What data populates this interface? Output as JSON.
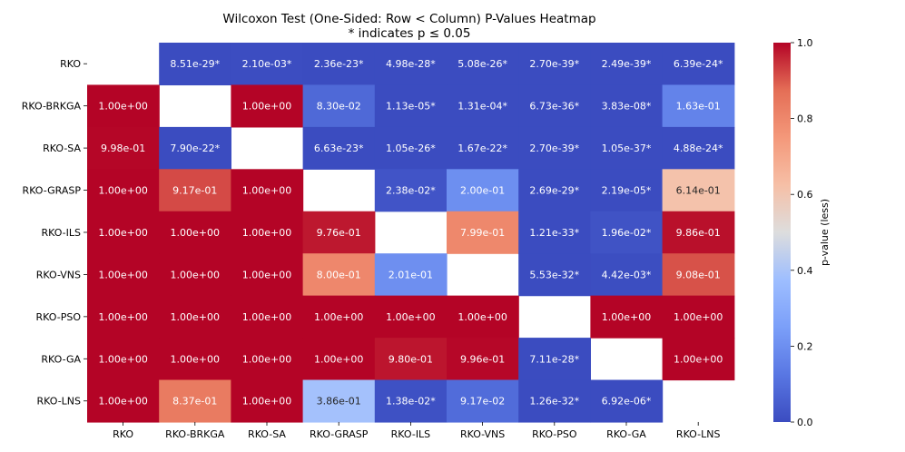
{
  "chart_data": {
    "type": "heatmap",
    "title": "Wilcoxon Test (One-Sided: Row < Column) P-Values Heatmap",
    "subtitle": "* indicates p ≤ 0.05",
    "rows": [
      "RKO",
      "RKO-BRKGA",
      "RKO-SA",
      "RKO-GRASP",
      "RKO-ILS",
      "RKO-VNS",
      "RKO-PSO",
      "RKO-GA",
      "RKO-LNS"
    ],
    "columns": [
      "RKO",
      "RKO-BRKGA",
      "RKO-SA",
      "RKO-GRASP",
      "RKO-ILS",
      "RKO-VNS",
      "RKO-PSO",
      "RKO-GA",
      "RKO-LNS"
    ],
    "values": [
      [
        null,
        8.51e-29,
        0.0021,
        2.36e-23,
        4.98e-28,
        5.08e-26,
        2.7e-39,
        2.49e-39,
        6.39e-24
      ],
      [
        1.0,
        null,
        1.0,
        0.083,
        1.13e-05,
        0.000131,
        6.73e-36,
        3.83e-08,
        0.163
      ],
      [
        0.998,
        7.9e-22,
        null,
        6.63e-23,
        1.05e-26,
        1.67e-22,
        2.7e-39,
        1.05e-37,
        4.88e-24
      ],
      [
        1.0,
        0.917,
        1.0,
        null,
        0.0238,
        0.2,
        2.69e-29,
        2.19e-05,
        0.614
      ],
      [
        1.0,
        1.0,
        1.0,
        0.976,
        null,
        0.799,
        1.21e-33,
        0.0196,
        0.986
      ],
      [
        1.0,
        1.0,
        1.0,
        0.8,
        0.201,
        null,
        5.53e-32,
        0.00442,
        0.908
      ],
      [
        1.0,
        1.0,
        1.0,
        1.0,
        1.0,
        1.0,
        null,
        1.0,
        1.0
      ],
      [
        1.0,
        1.0,
        1.0,
        1.0,
        0.98,
        0.996,
        7.11e-28,
        null,
        1.0
      ],
      [
        1.0,
        0.837,
        1.0,
        0.386,
        0.0138,
        0.0917,
        1.26e-32,
        6.92e-06,
        null
      ]
    ],
    "labels": [
      [
        "",
        "8.51e-29*",
        "2.10e-03*",
        "2.36e-23*",
        "4.98e-28*",
        "5.08e-26*",
        "2.70e-39*",
        "2.49e-39*",
        "6.39e-24*"
      ],
      [
        "1.00e+00",
        "",
        "1.00e+00",
        "8.30e-02",
        "1.13e-05*",
        "1.31e-04*",
        "6.73e-36*",
        "3.83e-08*",
        "1.63e-01"
      ],
      [
        "9.98e-01",
        "7.90e-22*",
        "",
        "6.63e-23*",
        "1.05e-26*",
        "1.67e-22*",
        "2.70e-39*",
        "1.05e-37*",
        "4.88e-24*"
      ],
      [
        "1.00e+00",
        "9.17e-01",
        "1.00e+00",
        "",
        "2.38e-02*",
        "2.00e-01",
        "2.69e-29*",
        "2.19e-05*",
        "6.14e-01"
      ],
      [
        "1.00e+00",
        "1.00e+00",
        "1.00e+00",
        "9.76e-01",
        "",
        "7.99e-01",
        "1.21e-33*",
        "1.96e-02*",
        "9.86e-01"
      ],
      [
        "1.00e+00",
        "1.00e+00",
        "1.00e+00",
        "8.00e-01",
        "2.01e-01",
        "",
        "5.53e-32*",
        "4.42e-03*",
        "9.08e-01"
      ],
      [
        "1.00e+00",
        "1.00e+00",
        "1.00e+00",
        "1.00e+00",
        "1.00e+00",
        "1.00e+00",
        "",
        "1.00e+00",
        "1.00e+00"
      ],
      [
        "1.00e+00",
        "1.00e+00",
        "1.00e+00",
        "1.00e+00",
        "9.80e-01",
        "9.96e-01",
        "7.11e-28*",
        "",
        "1.00e+00"
      ],
      [
        "1.00e+00",
        "8.37e-01",
        "1.00e+00",
        "3.86e-01",
        "1.38e-02*",
        "9.17e-02",
        "1.26e-32*",
        "6.92e-06*",
        ""
      ]
    ],
    "colorbar": {
      "label": "p-value (less)",
      "range": [
        0,
        1
      ],
      "ticks": [
        "0.0",
        "0.2",
        "0.4",
        "0.6",
        "0.8",
        "1.0"
      ],
      "colormap": "coolwarm"
    },
    "legend_position": "right",
    "grid": false
  }
}
